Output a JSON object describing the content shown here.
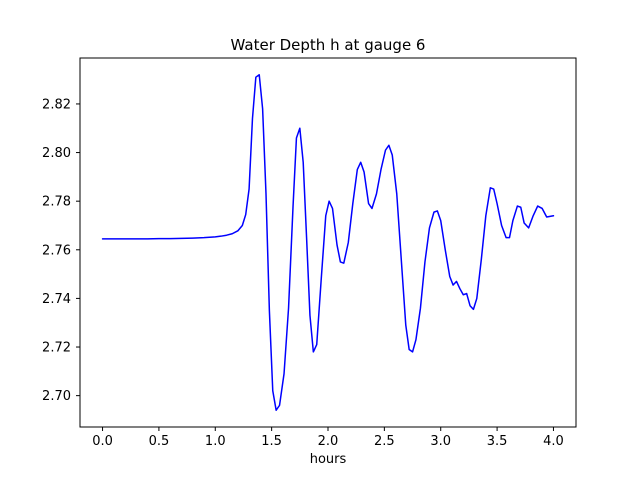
{
  "figure": {
    "title": "Water Depth h at gauge 6",
    "xlabel": "hours"
  },
  "chart_data": {
    "type": "line",
    "title": "Water Depth h at gauge 6",
    "xlabel": "hours",
    "ylabel": "",
    "line_color": "#0000ff",
    "line_width": 1.5,
    "grid": false,
    "legend": "none",
    "xlim": [
      -0.2,
      4.2
    ],
    "ylim": [
      2.6871,
      2.8389
    ],
    "xticks": [
      0.0,
      0.5,
      1.0,
      1.5,
      2.0,
      2.5,
      3.0,
      3.5,
      4.0
    ],
    "xtick_labels": [
      "0.0",
      "0.5",
      "1.0",
      "1.5",
      "2.0",
      "2.5",
      "3.0",
      "3.5",
      "4.0"
    ],
    "yticks": [
      2.7,
      2.72,
      2.74,
      2.76,
      2.78,
      2.8,
      2.82
    ],
    "ytick_labels": [
      "2.70",
      "2.72",
      "2.74",
      "2.76",
      "2.78",
      "2.80",
      "2.82"
    ],
    "series": [
      {
        "name": "water depth h",
        "x": [
          0.0,
          0.1,
          0.2,
          0.3,
          0.4,
          0.5,
          0.6,
          0.7,
          0.8,
          0.9,
          1.0,
          1.05,
          1.1,
          1.15,
          1.2,
          1.24,
          1.27,
          1.3,
          1.33,
          1.36,
          1.39,
          1.42,
          1.45,
          1.48,
          1.51,
          1.54,
          1.57,
          1.61,
          1.65,
          1.69,
          1.72,
          1.75,
          1.78,
          1.81,
          1.84,
          1.87,
          1.9,
          1.94,
          1.98,
          2.01,
          2.04,
          2.08,
          2.11,
          2.14,
          2.18,
          2.22,
          2.26,
          2.29,
          2.32,
          2.36,
          2.39,
          2.43,
          2.47,
          2.51,
          2.54,
          2.57,
          2.61,
          2.65,
          2.69,
          2.72,
          2.75,
          2.78,
          2.82,
          2.86,
          2.9,
          2.94,
          2.97,
          3.0,
          3.04,
          3.08,
          3.11,
          3.14,
          3.17,
          3.2,
          3.23,
          3.26,
          3.29,
          3.32,
          3.36,
          3.4,
          3.44,
          3.47,
          3.5,
          3.54,
          3.58,
          3.61,
          3.64,
          3.68,
          3.71,
          3.74,
          3.78,
          3.82,
          3.86,
          3.9,
          3.94,
          4.0
        ],
        "y": [
          2.7645,
          2.7645,
          2.7645,
          2.7645,
          2.7645,
          2.7646,
          2.7646,
          2.7647,
          2.7648,
          2.765,
          2.7653,
          2.7656,
          2.766,
          2.7666,
          2.7678,
          2.77,
          2.7745,
          2.785,
          2.814,
          2.831,
          2.832,
          2.818,
          2.783,
          2.735,
          2.702,
          2.694,
          2.696,
          2.709,
          2.736,
          2.778,
          2.806,
          2.81,
          2.796,
          2.765,
          2.733,
          2.718,
          2.721,
          2.748,
          2.774,
          2.78,
          2.777,
          2.762,
          2.755,
          2.7545,
          2.763,
          2.779,
          2.793,
          2.796,
          2.792,
          2.779,
          2.777,
          2.783,
          2.793,
          2.801,
          2.803,
          2.799,
          2.783,
          2.756,
          2.729,
          2.719,
          2.718,
          2.723,
          2.736,
          2.755,
          2.769,
          2.7755,
          2.776,
          2.772,
          2.76,
          2.749,
          2.7455,
          2.747,
          2.744,
          2.7415,
          2.742,
          2.737,
          2.7355,
          2.74,
          2.756,
          2.774,
          2.7855,
          2.785,
          2.779,
          2.77,
          2.765,
          2.765,
          2.772,
          2.778,
          2.7775,
          2.771,
          2.769,
          2.774,
          2.778,
          2.777,
          2.7735,
          2.774
        ]
      }
    ]
  }
}
